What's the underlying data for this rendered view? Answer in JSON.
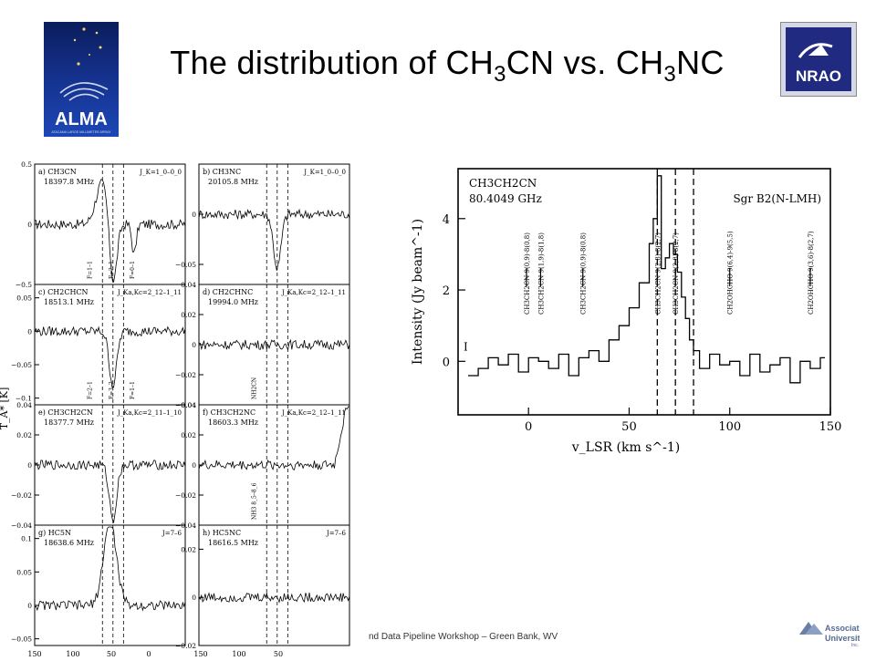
{
  "title": {
    "prefix": "The distribution of CH",
    "sub1": "3",
    "mid": "CN vs. CH",
    "sub2": "3",
    "suffix": "NC"
  },
  "logos": {
    "alma_text": "ALMA",
    "alma_sub": "ATACAMA LARGE MILLIMETER ARRAY",
    "nrao_text": "NRAO",
    "aui_line1": "Associated",
    "aui_line2": "Universities",
    "aui_inc": "Inc."
  },
  "footer": "nd Data Pipeline Workshop – Green Bank, WV",
  "colors": {
    "alma_bg": "#14308a",
    "nrao_bg": "#1f2a80"
  },
  "chart_data": [
    {
      "type": "line",
      "panel_grid": "4x2",
      "y_axis_label": "T_A* [K]",
      "x_ticks": [
        "150",
        "100",
        "50",
        "0",
        "150",
        "100",
        "50"
      ],
      "panels": [
        {
          "id": "a",
          "molecule": "CH3CN",
          "freq": "18397.8 MHz",
          "quantum": "J_K=1_0–0_0",
          "yticks": [
            "0.5",
            "0",
            "−0.5"
          ],
          "ylim": [
            -0.5,
            0.5
          ],
          "features": [
            "F=1–1",
            "F=2–1",
            "F=0–1"
          ],
          "lines": "strong absorption with emission wings"
        },
        {
          "id": "b",
          "molecule": "CH3NC",
          "freq": "20105.8 MHz",
          "quantum": "J_K=1_0–0_0",
          "yticks": [
            "0",
            "−0.05"
          ],
          "ylim": [
            -0.07,
            0.05
          ],
          "features": [],
          "lines": "absorption"
        },
        {
          "id": "c",
          "molecule": "CH2CHCN",
          "freq": "18513.1 MHz",
          "quantum": "J_Ka,Kc=2_12–1_11",
          "yticks": [
            "0.05",
            "0",
            "−0.05",
            "−0.1"
          ],
          "ylim": [
            -0.11,
            0.07
          ],
          "features": [
            "F=2–1",
            "F=3–2",
            "F=1–1"
          ],
          "lines": "absorption"
        },
        {
          "id": "d",
          "molecule": "CH2CHNC",
          "freq": "19994.0 MHz",
          "quantum": "J_Ka,Kc=2_12–1_11",
          "yticks": [
            "0.04",
            "0.02",
            "0",
            "−0.02",
            "−0.04"
          ],
          "ylim": [
            -0.04,
            0.04
          ],
          "features": [
            "NH2CN"
          ],
          "lines": "noise"
        },
        {
          "id": "e",
          "molecule": "CH3CH2CN",
          "freq": "18377.7 MHz",
          "quantum": "J_Ka,Kc=2_11–1_10",
          "yticks": [
            "0.04",
            "0.02",
            "0",
            "−0.02",
            "−0.04"
          ],
          "ylim": [
            -0.04,
            0.04
          ],
          "features": [],
          "lines": "absorption"
        },
        {
          "id": "f",
          "molecule": "CH3CH2NC",
          "freq": "18603.3 MHz",
          "quantum": "J_Ka,Kc=2_12–1_11",
          "yticks": [
            "0.04",
            "0.02",
            "0",
            "−0.02",
            "−0.04"
          ],
          "ylim": [
            -0.04,
            0.04
          ],
          "features": [
            "NH3 8_5–8_6"
          ],
          "lines": "noise with edge rise"
        },
        {
          "id": "g",
          "molecule": "HC5N",
          "freq": "18638.6 MHz",
          "quantum": "J=7–6",
          "yticks": [
            "0.1",
            "0.05",
            "0",
            "−0.05"
          ],
          "ylim": [
            -0.06,
            0.12
          ],
          "features": [],
          "lines": "strong emission"
        },
        {
          "id": "h",
          "molecule": "HC5NC",
          "freq": "18616.5 MHz",
          "quantum": "J=7–6",
          "yticks": [
            "0.02",
            "0",
            "−0.02"
          ],
          "ylim": [
            -0.02,
            0.03
          ],
          "features": [],
          "lines": "noise"
        }
      ]
    },
    {
      "type": "line",
      "title": "CH3CH2CN",
      "subtitle": "80.4049 GHz",
      "source": "Sgr B2(N-LMH)",
      "panel_label": "I",
      "xlabel": "v_LSR (km s^-1)",
      "ylabel": "Intensity (Jy beam^-1)",
      "xlim": [
        -35,
        150
      ],
      "ylim": [
        -1.5,
        5.4
      ],
      "x_ticks": [
        "0",
        "50",
        "100",
        "150"
      ],
      "y_ticks": [
        "0",
        "2",
        "4"
      ],
      "dashed_v": [
        64,
        73,
        82
      ],
      "annotations": [
        "CH3CH2CN 9(0,9)-8(0,8)",
        "CH3CH2CN 9(1,9)-8(1,8)",
        "CH3CH2CN 9(0,9)-8(0,8)",
        "CH3CH2CN 9(2,8)-8(2,7)",
        "CH3CH2CN 9(2,8)-8(2,7)",
        "CH2OHCHO 9(6,4)-9(5,5)",
        "CH2OHCHO 9(3,6)-8(2,7)"
      ],
      "peak": {
        "x": 64,
        "y": 5.2
      },
      "x": [
        -30,
        -25,
        -20,
        -15,
        -10,
        -5,
        0,
        5,
        10,
        15,
        20,
        25,
        30,
        35,
        40,
        45,
        50,
        55,
        60,
        62,
        64,
        66,
        68,
        70,
        72,
        74,
        76,
        78,
        80,
        82,
        85,
        90,
        95,
        100,
        105,
        110,
        115,
        120,
        125,
        130,
        135,
        140,
        145
      ],
      "y": [
        -0.4,
        -0.2,
        0.1,
        -0.1,
        0.2,
        -0.3,
        0.1,
        0.0,
        -0.2,
        0.2,
        -0.4,
        0.1,
        0.3,
        0.0,
        0.6,
        1.0,
        1.5,
        2.2,
        3.3,
        4.0,
        5.2,
        2.6,
        2.9,
        3.3,
        3.0,
        2.5,
        1.8,
        1.2,
        0.6,
        0.3,
        -0.2,
        0.2,
        -0.1,
        0.0,
        -0.4,
        0.2,
        -0.3,
        -0.1,
        0.1,
        -0.6,
        0.0,
        -0.2,
        0.1
      ]
    }
  ]
}
